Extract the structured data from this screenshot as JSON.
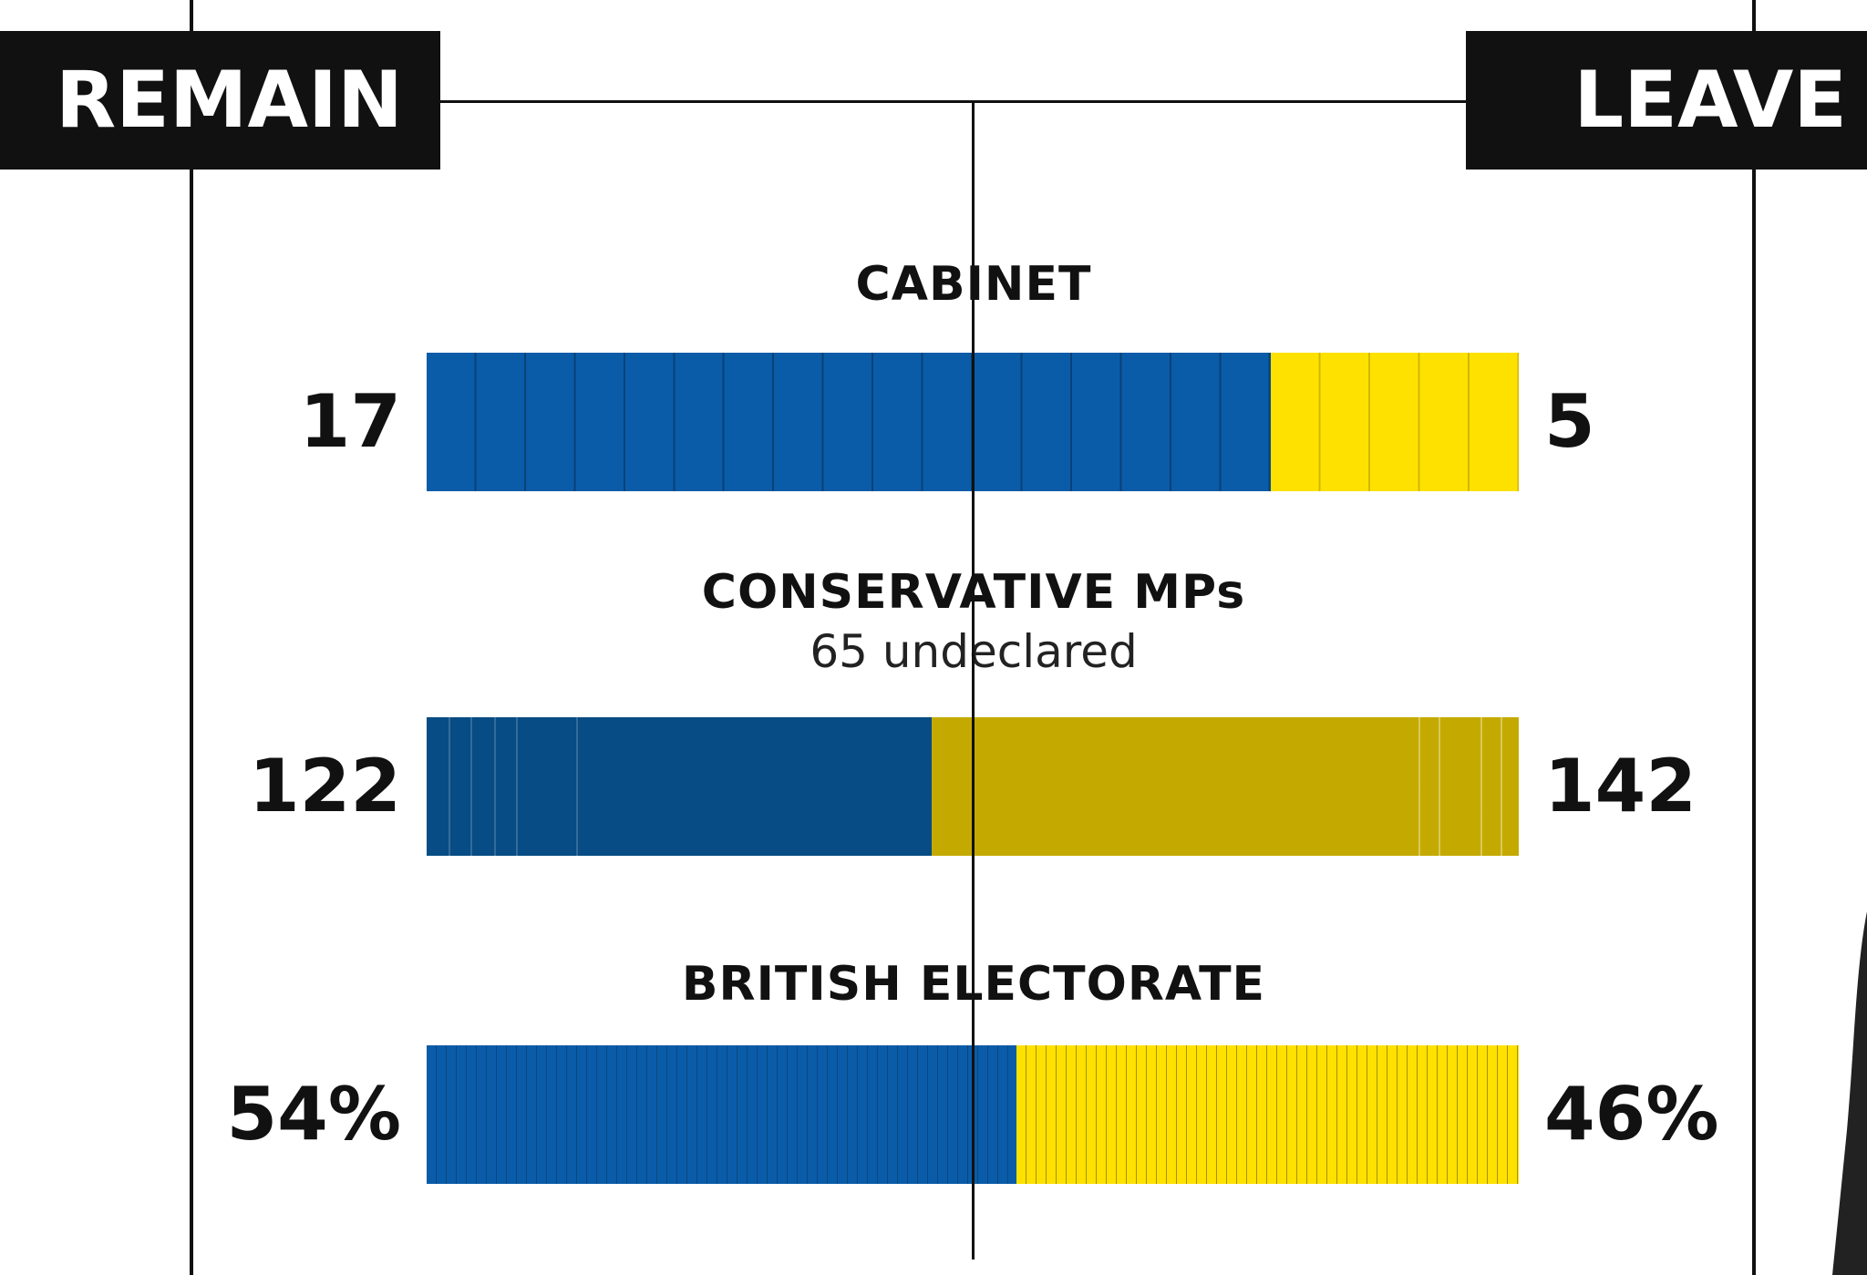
{
  "labels": {
    "remain": "REMAIN",
    "leave": "LEAVE"
  },
  "colors": {
    "remain": "#0a5ca8",
    "leave": "#ffe100",
    "remain_declared": "#074c84",
    "leave_declared": "#c4aa00",
    "frame": "#111111"
  },
  "chart_data": {
    "type": "bar",
    "orientation": "horizontal-stacked",
    "categories": [
      "CABINET",
      "CONSERVATIVE MPs",
      "BRITISH ELECTORATE"
    ],
    "series": [
      {
        "name": "REMAIN",
        "values": [
          17,
          122,
          54
        ]
      },
      {
        "name": "LEAVE",
        "values": [
          5,
          142,
          46
        ]
      }
    ],
    "value_labels": {
      "remain": [
        "17",
        "122",
        "54%"
      ],
      "leave": [
        "5",
        "142",
        "46%"
      ]
    },
    "subtitles": [
      "",
      "65 undeclared",
      ""
    ],
    "notes": "Remain shown on the left, Leave on the right; vertical line marks the midpoint."
  }
}
